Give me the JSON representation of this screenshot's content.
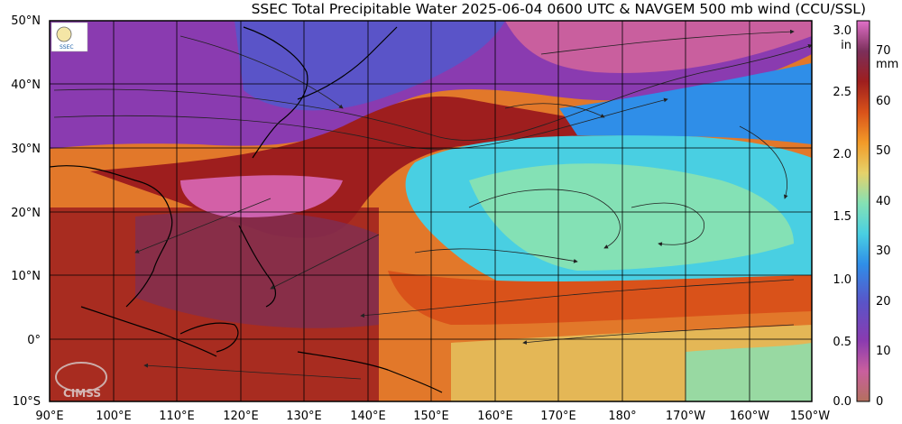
{
  "title": "SSEC Total Precipitable Water  2025-06-04 0600 UTC & NAVGEM 500 mb wind (CCU/SSL)",
  "map": {
    "lat_labels": [
      "50°N",
      "40°N",
      "30°N",
      "20°N",
      "10°N",
      "0°",
      "10°S"
    ],
    "lon_labels": [
      "90°E",
      "100°E",
      "110°E",
      "120°E",
      "130°E",
      "140°E",
      "150°E",
      "160°E",
      "170°E",
      "180°",
      "170°W",
      "160°W",
      "150°W"
    ],
    "land_color": "#3c3e43"
  },
  "colorbar": {
    "in_unit": "in",
    "mm_unit": "mm",
    "in_ticks": [
      "0.0",
      "0.5",
      "1.0",
      "1.5",
      "2.0",
      "2.5",
      "3.0"
    ],
    "mm_ticks": [
      "0",
      "10",
      "20",
      "30",
      "40",
      "50",
      "60",
      "70"
    ],
    "colors": [
      "#b4705e",
      "#c95f9e",
      "#8a3bb0",
      "#5a54c8",
      "#2f8ee8",
      "#49cfe2",
      "#84e1b5",
      "#e6d26a",
      "#f29a28",
      "#d9521a",
      "#9e1e1e",
      "#7b2f5a",
      "#e071c9"
    ]
  },
  "logos": {
    "ssec_logo_text": "SSEC",
    "cimss_text": "CIMSS"
  }
}
